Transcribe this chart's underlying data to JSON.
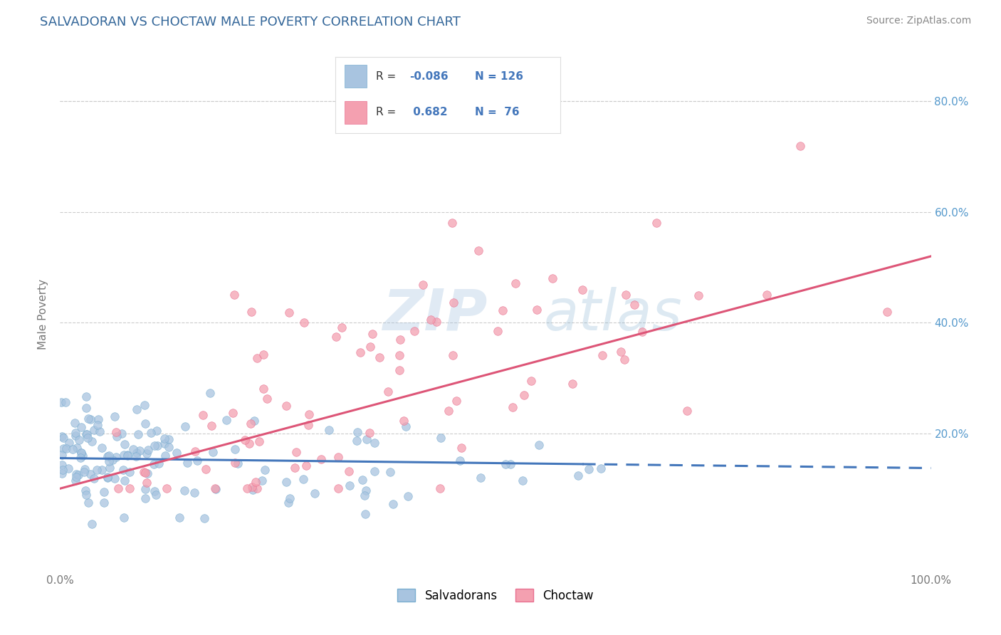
{
  "title": "SALVADORAN VS CHOCTAW MALE POVERTY CORRELATION CHART",
  "source": "Source: ZipAtlas.com",
  "ylabel": "Male Poverty",
  "salvadoran_color": "#a8c4e0",
  "salvadoran_edge_color": "#7aaed0",
  "choctaw_color": "#f4a0b0",
  "choctaw_edge_color": "#e87090",
  "salvadoran_line_color": "#4477bb",
  "choctaw_line_color": "#dd5577",
  "watermark_color": "#c8d8ee",
  "background_color": "#ffffff",
  "grid_color": "#cccccc",
  "title_color": "#336699",
  "source_color": "#888888",
  "right_tick_color": "#5599cc",
  "title_fontsize": 13,
  "source_fontsize": 10,
  "legend_R_color": "#333333",
  "legend_val_color": "#4477bb",
  "xlim": [
    0.0,
    1.0
  ],
  "ylim": [
    -0.05,
    0.88
  ],
  "yticks": [
    0.0,
    0.2,
    0.4,
    0.6,
    0.8
  ],
  "ytick_labels": [
    "",
    "20.0%",
    "40.0%",
    "60.0%",
    "80.0%"
  ],
  "xticks": [
    0.0,
    1.0
  ],
  "xtick_labels": [
    "0.0%",
    "100.0%"
  ],
  "R1": -0.086,
  "N1": 126,
  "R2": 0.682,
  "N2": 76,
  "dot_size": 70,
  "dot_alpha": 0.75
}
